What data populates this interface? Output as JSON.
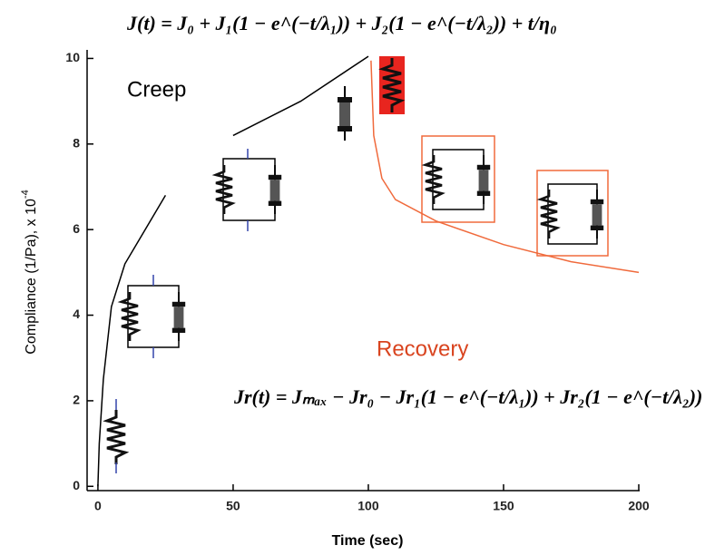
{
  "chart_data": {
    "type": "line",
    "x_label": "Time (sec)",
    "y_label": "Compliance (1/Pa), x 10",
    "y_label_exponent": "-4",
    "annotations": [
      {
        "text": "Creep",
        "color": "#000000"
      },
      {
        "text": "Recovery",
        "color": "#d9441f"
      },
      {
        "text": "J(t) = J₀ + J₁(1 − e^(−t/λ₁)) + J₂(1 − e^(−t/λ₂)) + t/η₀",
        "color": "#000000"
      },
      {
        "text": "Jr(t) = Jₘₐₓ − Jr₀ − Jr₁(1 − e^(−t/λ₁)) + Jr₂(1 − e^(−t/λ₂))",
        "color": "#000000"
      }
    ],
    "series": [
      {
        "name": "Creep",
        "color": "#000000",
        "x": [
          0,
          0.5,
          2,
          5,
          10,
          25,
          44,
          50,
          75,
          100
        ],
        "values": [
          0,
          1,
          2.5,
          4.2,
          5.2,
          6.8,
          null,
          8.2,
          9.0,
          10.05
        ]
      },
      {
        "name": "Recovery",
        "color": "#f06a3c",
        "x": [
          101,
          102,
          105,
          110,
          125,
          150,
          175,
          200
        ],
        "values": [
          9.95,
          8.2,
          7.2,
          6.7,
          6.2,
          5.65,
          5.25,
          5.0
        ]
      }
    ],
    "xlim": [
      -4,
      200
    ],
    "xticks": [
      0,
      50,
      100,
      150,
      200
    ],
    "ylim": [
      -0.1,
      10.2
    ],
    "yticks": [
      0,
      2,
      4,
      6,
      8,
      10
    ]
  }
}
